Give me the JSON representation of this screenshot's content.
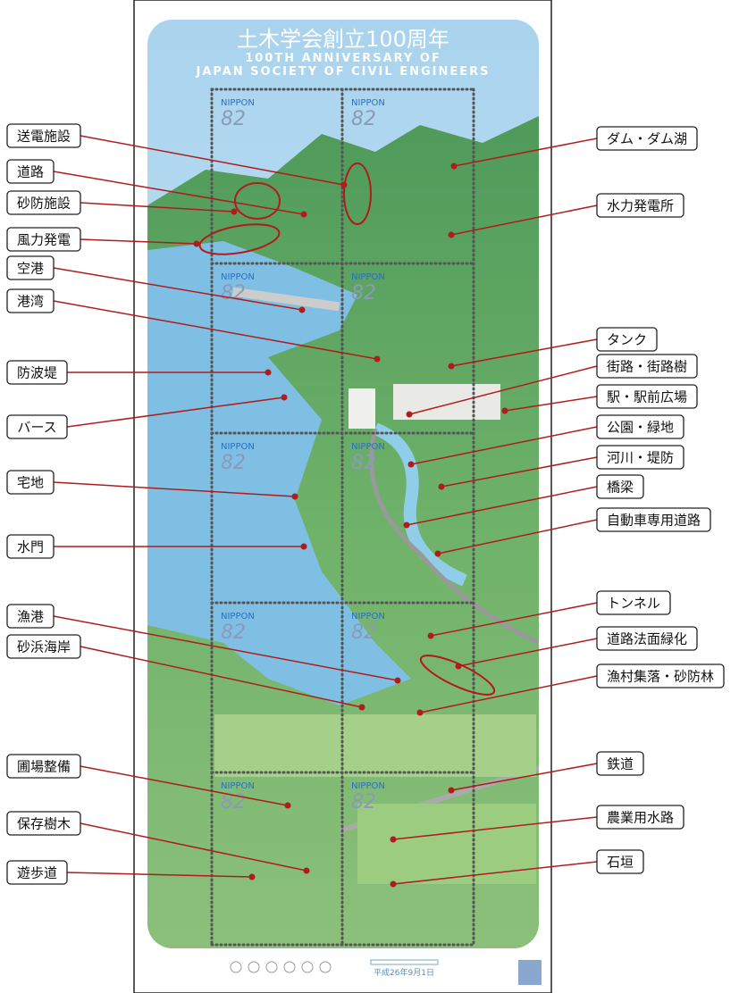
{
  "sheet": {
    "title": "土木学会創立100周年",
    "subtitle_lines": [
      "100TH ANNIVERSARY OF",
      "JAPAN SOCIETY OF CIVIL ENGINEERS"
    ],
    "date": "平成26年9月1日"
  },
  "stamps": [
    {
      "country": "NIPPON",
      "value": "82"
    },
    {
      "country": "NIPPON",
      "value": "82"
    },
    {
      "country": "NIPPON",
      "value": "82"
    },
    {
      "country": "NIPPON",
      "value": "82"
    },
    {
      "country": "NIPPON",
      "value": "82"
    },
    {
      "country": "NIPPON",
      "value": "82"
    },
    {
      "country": "NIPPON",
      "value": "82"
    },
    {
      "country": "NIPPON",
      "value": "82"
    },
    {
      "country": "NIPPON",
      "value": "82"
    },
    {
      "country": "NIPPON",
      "value": "82"
    }
  ],
  "labels_left": [
    "送電施設",
    "道路",
    "砂防施設",
    "風力発電",
    "空港",
    "港湾",
    "防波堤",
    "バース",
    "宅地",
    "水門",
    "漁港",
    "砂浜海岸",
    "圃場整備",
    "保存樹木",
    "遊歩道"
  ],
  "labels_right": [
    "ダム・ダム湖",
    "水力発電所",
    "タンク",
    "街路・街路樹",
    "駅・駅前広場",
    "公園・緑地",
    "河川・堤防",
    "橋梁",
    "自動車専用道路",
    "トンネル",
    "道路法面緑化",
    "漁村集落・砂防林",
    "鉄道",
    "農業用水路",
    "石垣"
  ]
}
